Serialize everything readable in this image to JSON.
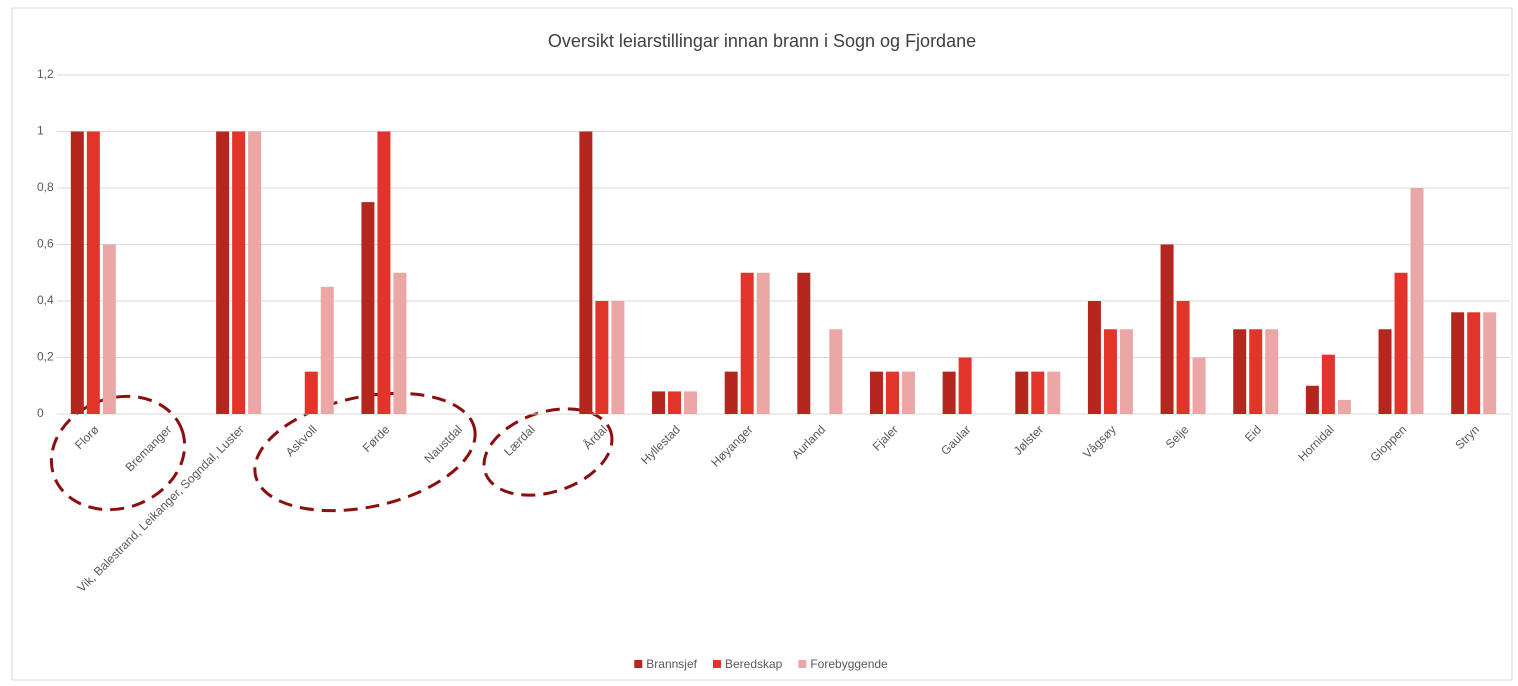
{
  "chart_data": {
    "type": "bar",
    "title": "Oversikt leiarstillingar innan brann i Sogn og Fjordane",
    "categories": [
      "Florø",
      "Bremanger",
      "Vik, Balestrand, Leikanger, Sogndal, Luster",
      "Askvoll",
      "Førde",
      "Naustdal",
      "Lærdal",
      "Årdal",
      "Hyllestad",
      "Høyanger",
      "Aurland",
      "Fjaler",
      "Gaular",
      "Jølster",
      "Vågsøy",
      "Selje",
      "Eid",
      "Hornidal",
      "Gloppen",
      "Stryn"
    ],
    "series": [
      {
        "name": "Brannsjef",
        "color": "#b4261e",
        "values": [
          1,
          0,
          1,
          0,
          0.75,
          0,
          0,
          1,
          0.08,
          0.15,
          0.5,
          0.15,
          0.15,
          0.15,
          0.4,
          0.6,
          0.3,
          0.1,
          0.3,
          0.36
        ]
      },
      {
        "name": "Beredskap",
        "color": "#e2342a",
        "values": [
          1,
          0,
          1,
          0.15,
          1,
          0,
          0,
          0.4,
          0.08,
          0.5,
          0,
          0.15,
          0.2,
          0.15,
          0.3,
          0.4,
          0.3,
          0.21,
          0.5,
          0.36
        ]
      },
      {
        "name": "Forebyggende",
        "color": "#eba6a6",
        "values": [
          0.6,
          0,
          1,
          0.45,
          0.5,
          0,
          0,
          0.4,
          0.08,
          0.5,
          0.3,
          0.15,
          0,
          0.15,
          0.3,
          0.2,
          0.3,
          0.05,
          0.8,
          0.36
        ]
      }
    ],
    "ylim": [
      0,
      1.2
    ],
    "yticks": [
      0,
      {
        "value": 0.2,
        "label": "0,2"
      },
      {
        "value": 0.4,
        "label": "0,4"
      },
      {
        "value": 0.6,
        "label": "0,6"
      },
      {
        "value": 0.8,
        "label": "0,8"
      },
      1,
      {
        "value": 1.2,
        "label": "1,2"
      }
    ],
    "grid": true,
    "legend": "bottom"
  }
}
